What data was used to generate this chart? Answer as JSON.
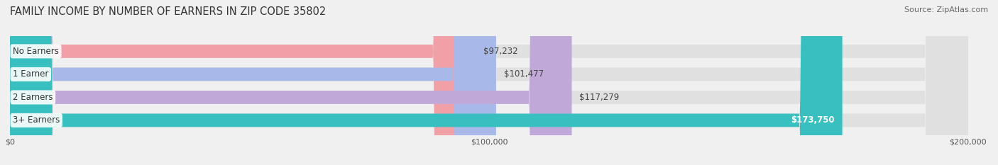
{
  "title": "FAMILY INCOME BY NUMBER OF EARNERS IN ZIP CODE 35802",
  "source": "Source: ZipAtlas.com",
  "categories": [
    "No Earners",
    "1 Earner",
    "2 Earners",
    "3+ Earners"
  ],
  "values": [
    97232,
    101477,
    117279,
    173750
  ],
  "bar_colors": [
    "#f2a0a8",
    "#a8b8e8",
    "#c0a8d8",
    "#38c0c0"
  ],
  "label_colors": [
    "#555555",
    "#555555",
    "#555555",
    "#ffffff"
  ],
  "value_labels": [
    "$97,232",
    "$101,477",
    "$117,279",
    "$173,750"
  ],
  "xmax": 200000,
  "xtick_labels": [
    "$0",
    "$100,000",
    "$200,000"
  ],
  "background_color": "#f0f0f0",
  "bar_background_color": "#e0e0e0",
  "title_fontsize": 10.5,
  "source_fontsize": 8,
  "label_fontsize": 8.5,
  "value_fontsize": 8.5,
  "bar_height": 0.58
}
